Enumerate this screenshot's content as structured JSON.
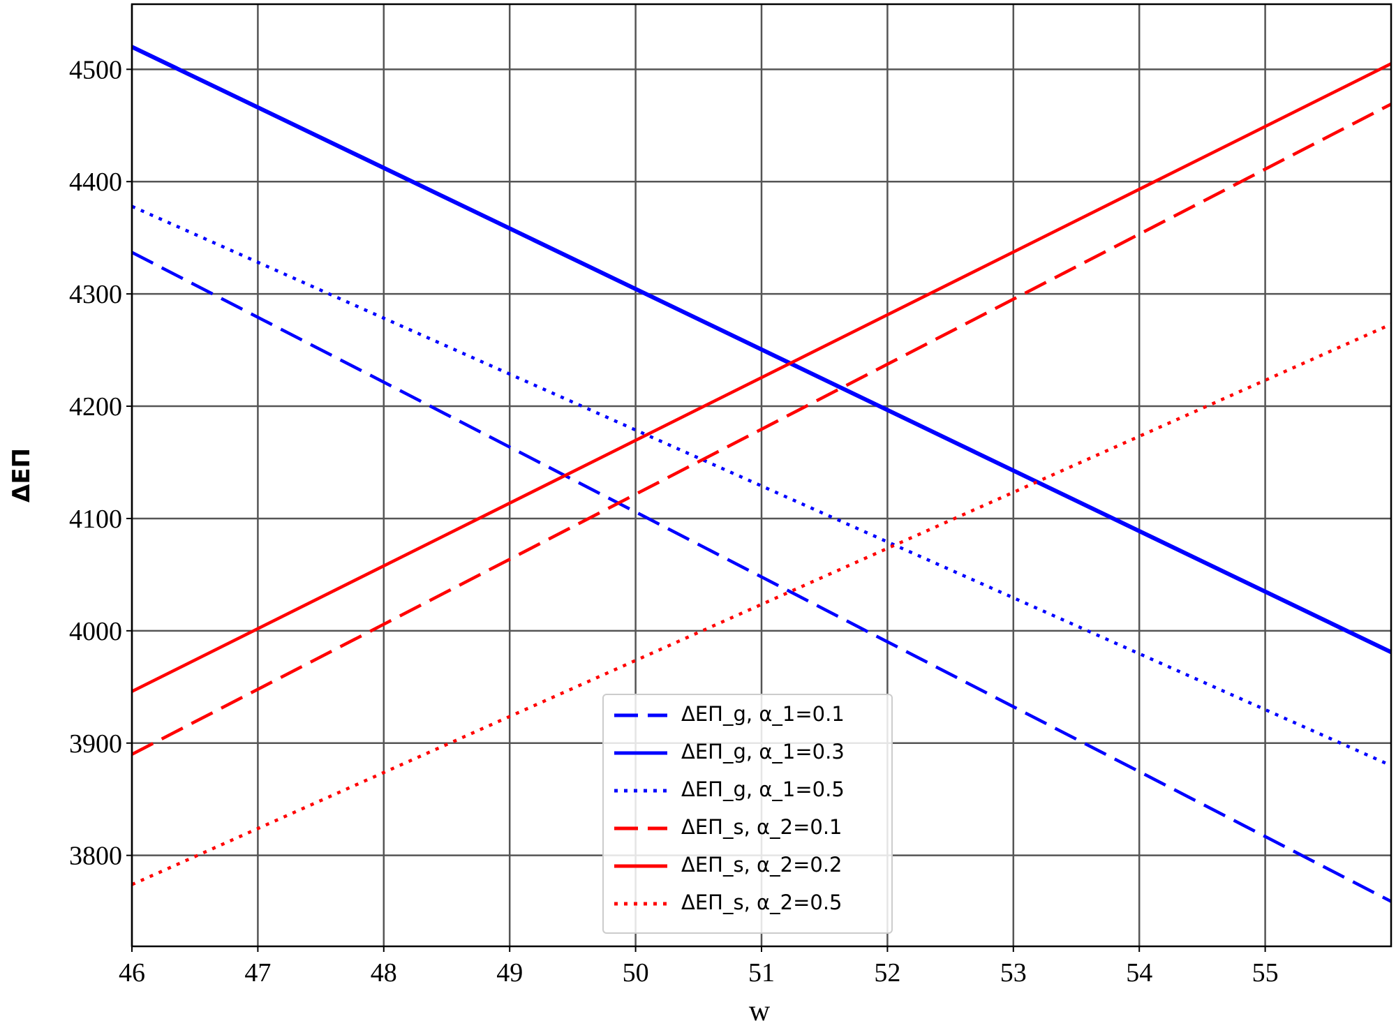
{
  "chart_data": {
    "type": "line",
    "xlabel": "w",
    "ylabel": "ΔEΠ",
    "x": [
      46,
      56
    ],
    "series": [
      {
        "name": "ΔEΠ_g, α_1=0.1",
        "color": "#0000ff",
        "linestyle": "dashed",
        "values": [
          4337,
          3759
        ]
      },
      {
        "name": "ΔEΠ_g, α_1=0.3",
        "color": "#0000ff",
        "linestyle": "solid",
        "values": [
          4520,
          3981
        ]
      },
      {
        "name": "ΔEΠ_g, α_1=0.5",
        "color": "#0000ff",
        "linestyle": "dotted",
        "values": [
          4378,
          3880
        ]
      },
      {
        "name": "ΔEΠ_s, α_2=0.1",
        "color": "#ff0000",
        "linestyle": "dashed",
        "values": [
          3890,
          4469
        ]
      },
      {
        "name": "ΔEΠ_s, α_2=0.2",
        "color": "#ff0000",
        "linestyle": "solid",
        "values": [
          3946,
          4505
        ]
      },
      {
        "name": "ΔEΠ_s, α_2=0.5",
        "color": "#ff0000",
        "linestyle": "dotted",
        "values": [
          3774,
          4273
        ]
      }
    ],
    "xlim": [
      46,
      56
    ],
    "xticks": [
      46,
      47,
      48,
      49,
      50,
      51,
      52,
      53,
      54,
      55
    ],
    "ylim": [
      3719,
      4558
    ],
    "yticks": [
      3800,
      3900,
      4000,
      4100,
      4200,
      4300,
      4400,
      4500
    ],
    "grid": true,
    "legend": "lower center"
  }
}
